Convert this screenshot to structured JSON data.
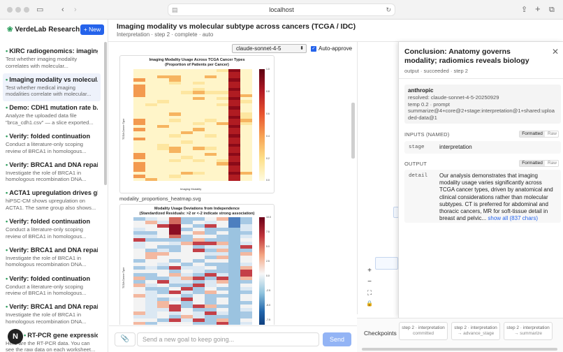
{
  "browser": {
    "url": "localhost"
  },
  "sidebar": {
    "brand": "VerdeLab Research",
    "new_button": "+ New",
    "runs": [
      {
        "title": "KIRC radiogenomics: imaging...",
        "desc": "Test whether imaging modality correlates with molecular..."
      },
      {
        "title": "Imaging modality vs molecul...",
        "desc": "Test whether medical imaging modalities correlate with molecular...",
        "active": true
      },
      {
        "title": "Demo: CDH1 mutation rate b...",
        "desc": "Analyze the uploaded data file \"brca_cdh1.csv\" — a slice exported..."
      },
      {
        "title": "Verify: folded continuation",
        "desc": "Conduct a literature-only scoping review of BRCA1 in homologous..."
      },
      {
        "title": "Verify: BRCA1 and DNA repair",
        "desc": "Investigate the role of BRCA1 in homologous recombination DNA..."
      },
      {
        "title": "ACTA1 upregulation drives gl...",
        "desc": "hiPSC-CM shows upregulation on ACTA1. The same group also shows..."
      },
      {
        "title": "Verify: folded continuation",
        "desc": "Conduct a literature-only scoping review of BRCA1 in homologous..."
      },
      {
        "title": "Verify: BRCA1 and DNA repair",
        "desc": "Investigate the role of BRCA1 in homologous recombination DNA..."
      },
      {
        "title": "Verify: folded continuation",
        "desc": "Conduct a literature-only scoping review of BRCA1 in homologous..."
      },
      {
        "title": "Verify: BRCA1 and DNA repair",
        "desc": "Investigate the role of BRCA1 in homologous recombination DNA..."
      },
      {
        "title": "RT-PCR gene expression ana...",
        "desc": "Here are the RT-PCR data. You can see the raw data on each worksheet..."
      }
    ],
    "avatar": "N"
  },
  "header": {
    "title": "Imaging modality vs molecular subtype across cancers (TCGA / IDC)",
    "subtitle": "Interpretation · step 2 · complete · auto"
  },
  "toolbar": {
    "model": "claude-sonnet-4-5",
    "auto_approve": "Auto-approve"
  },
  "figures": {
    "fig1_title": "Imaging Modality Usage Across TCGA Cancer Types\n(Proportion of Patients per Cancer)",
    "fig1_ylabel": "TCGA Cancer Type",
    "fig1_xlabel": "Imaging Modality",
    "fig1_file": "modality_proportions_heatmap.svg",
    "fig1_cbar_ticks": [
      "1.0",
      "0.8",
      "0.6",
      "0.4",
      "0.2",
      "0.0"
    ],
    "fig2_title": "Modality Usage Deviations from Independence\n(Standardized Residuals: >2 or <-2 indicate strong association)",
    "fig2_ylabel": "TCGA Cancer Type",
    "fig2_cbar_ticks": [
      "10.0",
      "7.5",
      "5.0",
      "2.5",
      "0.0",
      "-2.5",
      "-5.0",
      "-7.5"
    ]
  },
  "composer": {
    "placeholder": "Send a new goal to keep going...",
    "send": "Send"
  },
  "panel": {
    "title": "Conclusion: Anatomy governs modality; radiomics reveals biology",
    "subtitle": "output · succeeded · step 2",
    "provider": "anthropic",
    "resolved": "resolved: claude-sonnet-4-5-20250929",
    "temp": "temp 0.2 · prompt",
    "summarize": "summarize@4+core@2+stage:interpretation@1+shared:uploaded-data@1",
    "inputs_label": "INPUTS (NAMED)",
    "output_label": "OUTPUT",
    "formatted": "Formatted",
    "raw": "Raw",
    "stage_key": "stage",
    "stage_val": "interpretation",
    "detail_key": "detail",
    "detail_val": "Our analysis demonstrates that imaging modality usage varies significantly across TCGA cancer types, driven by anatomical and clinical considerations rather than molecular subtypes. CT is preferred for abdominal and thoracic cancers, MR for soft-tissue detail in breast and pelvic...",
    "show_all": "show all (837 chars)"
  },
  "checkpoints": {
    "label": "Checkpoints",
    "items": [
      {
        "a": "step 2 · interpretation",
        "b": "committed"
      },
      {
        "a": "step 2 · interpretation",
        "b": "→ advance_stage"
      },
      {
        "a": "step 2 · interpretation",
        "b": "→ summarize"
      }
    ]
  }
}
